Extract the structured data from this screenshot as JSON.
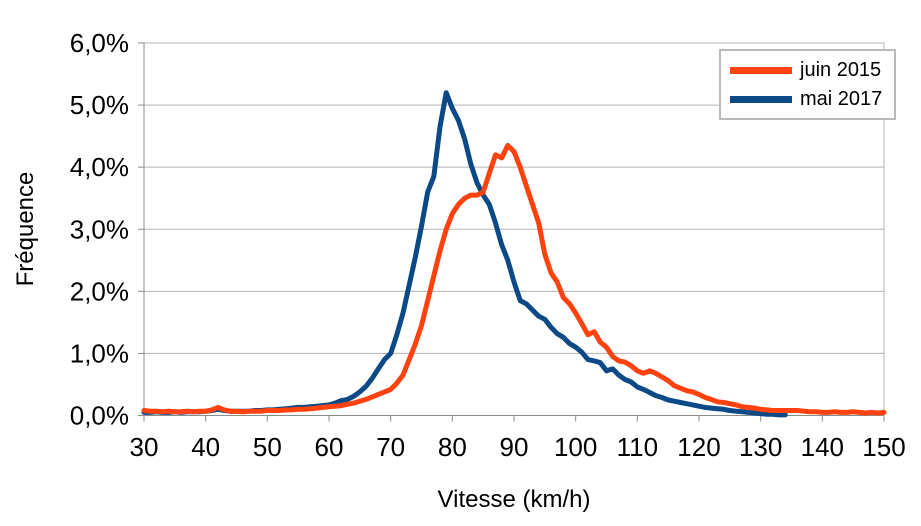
{
  "chart_data": {
    "type": "line",
    "title": "",
    "xlabel": "Vitesse (km/h)",
    "ylabel": "Fréquence",
    "xlim": [
      30,
      150
    ],
    "ylim": [
      0,
      6
    ],
    "grid": "horizontal-only",
    "legend_position": "top-right",
    "x_start": 30,
    "x_step": 1,
    "x_ticks": [
      {
        "v": 30,
        "label": "30"
      },
      {
        "v": 40,
        "label": "40"
      },
      {
        "v": 50,
        "label": "50"
      },
      {
        "v": 60,
        "label": "60"
      },
      {
        "v": 70,
        "label": "70"
      },
      {
        "v": 80,
        "label": "80"
      },
      {
        "v": 90,
        "label": "90"
      },
      {
        "v": 100,
        "label": "100"
      },
      {
        "v": 110,
        "label": "110"
      },
      {
        "v": 120,
        "label": "120"
      },
      {
        "v": 130,
        "label": "130"
      },
      {
        "v": 140,
        "label": "140"
      },
      {
        "v": 150,
        "label": "150"
      }
    ],
    "y_ticks": [
      {
        "v": 0,
        "label": "0,0%"
      },
      {
        "v": 1,
        "label": "1,0%"
      },
      {
        "v": 2,
        "label": "2,0%"
      },
      {
        "v": 3,
        "label": "3,0%"
      },
      {
        "v": 4,
        "label": "4,0%"
      },
      {
        "v": 5,
        "label": "5,0%"
      },
      {
        "v": 6,
        "label": "6,0%"
      }
    ],
    "series": [
      {
        "name": "juin 2015",
        "color": "#ff420e",
        "peak": {
          "x": 89,
          "y": 4.35
        },
        "values": [
          0.08,
          0.07,
          0.07,
          0.06,
          0.07,
          0.06,
          0.06,
          0.07,
          0.06,
          0.07,
          0.07,
          0.09,
          0.13,
          0.09,
          0.07,
          0.07,
          0.06,
          0.07,
          0.07,
          0.07,
          0.08,
          0.08,
          0.08,
          0.09,
          0.09,
          0.1,
          0.1,
          0.11,
          0.12,
          0.13,
          0.14,
          0.15,
          0.16,
          0.18,
          0.2,
          0.23,
          0.26,
          0.3,
          0.34,
          0.38,
          0.42,
          0.52,
          0.65,
          0.9,
          1.15,
          1.45,
          1.85,
          2.25,
          2.65,
          3.0,
          3.25,
          3.4,
          3.5,
          3.55,
          3.55,
          3.6,
          3.9,
          4.2,
          4.15,
          4.35,
          4.25,
          4.0,
          3.7,
          3.4,
          3.1,
          2.6,
          2.3,
          2.15,
          1.9,
          1.8,
          1.65,
          1.48,
          1.3,
          1.35,
          1.18,
          1.1,
          0.95,
          0.88,
          0.86,
          0.8,
          0.72,
          0.68,
          0.72,
          0.68,
          0.62,
          0.56,
          0.48,
          0.44,
          0.4,
          0.38,
          0.34,
          0.29,
          0.26,
          0.22,
          0.21,
          0.19,
          0.17,
          0.14,
          0.13,
          0.12,
          0.1,
          0.09,
          0.08,
          0.08,
          0.08,
          0.08,
          0.08,
          0.07,
          0.06,
          0.06,
          0.05,
          0.05,
          0.06,
          0.05,
          0.05,
          0.06,
          0.05,
          0.04,
          0.05,
          0.04,
          0.05
        ]
      },
      {
        "name": "mai 2017",
        "color": "#0b4a86",
        "peak": {
          "x": 79,
          "y": 5.2
        },
        "values": [
          0.05,
          0.05,
          0.06,
          0.05,
          0.05,
          0.06,
          0.05,
          0.06,
          0.06,
          0.06,
          0.07,
          0.08,
          0.1,
          0.08,
          0.07,
          0.07,
          0.07,
          0.07,
          0.08,
          0.08,
          0.09,
          0.09,
          0.1,
          0.11,
          0.12,
          0.13,
          0.13,
          0.14,
          0.15,
          0.16,
          0.17,
          0.2,
          0.24,
          0.26,
          0.31,
          0.38,
          0.47,
          0.6,
          0.75,
          0.9,
          1.0,
          1.3,
          1.65,
          2.1,
          2.55,
          3.05,
          3.6,
          3.85,
          4.65,
          5.2,
          4.95,
          4.75,
          4.45,
          4.05,
          3.75,
          3.55,
          3.4,
          3.1,
          2.75,
          2.5,
          2.15,
          1.85,
          1.8,
          1.7,
          1.6,
          1.55,
          1.42,
          1.32,
          1.26,
          1.16,
          1.1,
          1.02,
          0.9,
          0.88,
          0.85,
          0.72,
          0.75,
          0.65,
          0.58,
          0.54,
          0.46,
          0.42,
          0.37,
          0.32,
          0.29,
          0.25,
          0.23,
          0.21,
          0.19,
          0.17,
          0.15,
          0.13,
          0.12,
          0.11,
          0.1,
          0.08,
          0.07,
          0.06,
          0.05,
          0.04,
          0.03,
          0.02,
          0.02,
          0.01,
          0.01
        ]
      }
    ]
  },
  "colors": {
    "background": "#ffffff",
    "gridline": "#b3b3b3",
    "axis": "#8c8c8c",
    "text": "#000000",
    "legend_border": "#b9b9b9",
    "series_juin_2015": "#ff420e",
    "series_mai_2017": "#0b4a86"
  }
}
